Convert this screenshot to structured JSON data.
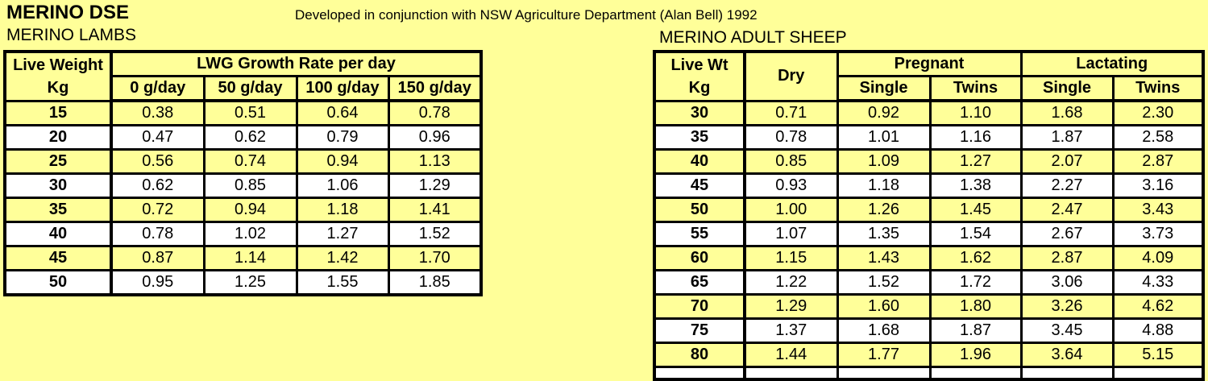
{
  "page": {
    "title": "MERINO DSE",
    "subtitle": "Developed in conjunction with NSW Agriculture Department (Alan Bell) 1992",
    "background_color": "#FFFF99",
    "row_alt_colors": [
      "#FFFF99",
      "#FFFFFF"
    ],
    "border_color": "#000000"
  },
  "lambs_table": {
    "caption": "MERINO LAMBS",
    "row_header": {
      "line1": "Live Weight",
      "line2": "Kg"
    },
    "col_group_label": "LWG Growth Rate per day",
    "columns": [
      "0 g/day",
      "50 g/day",
      "100 g/day",
      "150 g/day"
    ],
    "rows": [
      {
        "weight": "15",
        "values": [
          "0.38",
          "0.51",
          "0.64",
          "0.78"
        ]
      },
      {
        "weight": "20",
        "values": [
          "0.47",
          "0.62",
          "0.79",
          "0.96"
        ]
      },
      {
        "weight": "25",
        "values": [
          "0.56",
          "0.74",
          "0.94",
          "1.13"
        ]
      },
      {
        "weight": "30",
        "values": [
          "0.62",
          "0.85",
          "1.06",
          "1.29"
        ]
      },
      {
        "weight": "35",
        "values": [
          "0.72",
          "0.94",
          "1.18",
          "1.41"
        ]
      },
      {
        "weight": "40",
        "values": [
          "0.78",
          "1.02",
          "1.27",
          "1.52"
        ]
      },
      {
        "weight": "45",
        "values": [
          "0.87",
          "1.14",
          "1.42",
          "1.70"
        ]
      },
      {
        "weight": "50",
        "values": [
          "0.95",
          "1.25",
          "1.55",
          "1.85"
        ]
      }
    ]
  },
  "adult_table": {
    "caption": "MERINO ADULT SHEEP",
    "row_header": {
      "line1": "Live Wt",
      "line2": "Kg"
    },
    "dry_label": "Dry",
    "groups": [
      {
        "label": "Pregnant",
        "columns": [
          "Single",
          "Twins"
        ]
      },
      {
        "label": "Lactating",
        "columns": [
          "Single",
          "Twins"
        ]
      }
    ],
    "rows": [
      {
        "weight": "30",
        "values": [
          "0.71",
          "0.92",
          "1.10",
          "1.68",
          "2.30"
        ]
      },
      {
        "weight": "35",
        "values": [
          "0.78",
          "1.01",
          "1.16",
          "1.87",
          "2.58"
        ]
      },
      {
        "weight": "40",
        "values": [
          "0.85",
          "1.09",
          "1.27",
          "2.07",
          "2.87"
        ]
      },
      {
        "weight": "45",
        "values": [
          "0.93",
          "1.18",
          "1.38",
          "2.27",
          "3.16"
        ]
      },
      {
        "weight": "50",
        "values": [
          "1.00",
          "1.26",
          "1.45",
          "2.47",
          "3.43"
        ]
      },
      {
        "weight": "55",
        "values": [
          "1.07",
          "1.35",
          "1.54",
          "2.67",
          "3.73"
        ]
      },
      {
        "weight": "60",
        "values": [
          "1.15",
          "1.43",
          "1.62",
          "2.87",
          "4.09"
        ]
      },
      {
        "weight": "65",
        "values": [
          "1.22",
          "1.52",
          "1.72",
          "3.06",
          "4.33"
        ]
      },
      {
        "weight": "70",
        "values": [
          "1.29",
          "1.60",
          "1.80",
          "3.26",
          "4.62"
        ]
      },
      {
        "weight": "75",
        "values": [
          "1.37",
          "1.68",
          "1.87",
          "3.45",
          "4.88"
        ]
      },
      {
        "weight": "80",
        "values": [
          "1.44",
          "1.77",
          "1.96",
          "3.64",
          "5.15"
        ]
      }
    ]
  }
}
